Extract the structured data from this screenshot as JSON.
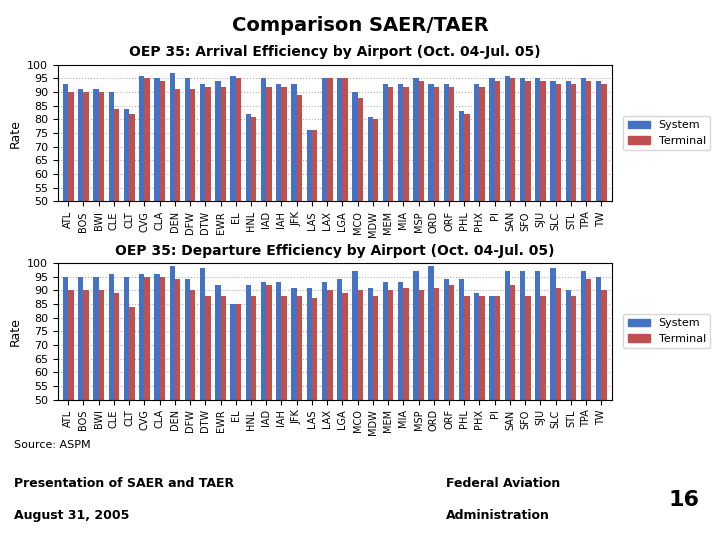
{
  "title": "Comparison SAER/TAER",
  "annotations": [
    "Source: ASPM",
    "Presentation of SAER and TAER",
    "August 31, 2005",
    "Federal Aviation",
    "Administration",
    "16"
  ],
  "chart_data": [
    {
      "type": "bar",
      "title": "OEP 35: Arrival Efficiency by Airport (Oct. 04-Jul. 05)",
      "y_label": "Rate",
      "categories": [
        "ATL",
        "BOS",
        "BWI",
        "CLE",
        "CLT",
        "CVG",
        "CLA",
        "DEN",
        "DFW",
        "DTW",
        "EWR",
        "EL",
        "HNL",
        "IAD",
        "IAH",
        "JFK",
        "LAS",
        "LAX",
        "LGA",
        "MCO",
        "MDW",
        "MEM",
        "MIA",
        "MSP",
        "ORD",
        "ORF",
        "PHL",
        "PHX",
        "PI",
        "SAN",
        "SFO",
        "SJU",
        "SLC",
        "STL",
        "TPA",
        "TW"
      ],
      "series": [
        {
          "name": "System",
          "color": "#4472C4",
          "values": [
            93,
            91,
            91,
            90,
            84,
            96,
            95,
            97,
            95,
            93,
            94,
            96,
            82,
            95,
            93,
            93,
            76,
            95,
            95,
            90,
            81,
            93,
            93,
            95,
            93,
            93,
            83,
            93,
            95,
            96,
            95,
            95,
            94,
            94,
            95,
            94
          ]
        },
        {
          "name": "Terminal",
          "color": "#C0504D",
          "values": [
            90,
            90,
            90,
            84,
            82,
            95,
            94,
            91,
            91,
            92,
            92,
            95,
            81,
            92,
            92,
            89,
            76,
            95,
            95,
            88,
            80,
            92,
            92,
            94,
            92,
            92,
            82,
            92,
            94,
            95,
            94,
            94,
            93,
            93,
            94,
            93
          ]
        }
      ],
      "ylim": [
        50,
        100
      ],
      "yticks": [
        50,
        55,
        60,
        65,
        70,
        75,
        80,
        85,
        90,
        95,
        100
      ],
      "grid": true,
      "legend": "right"
    },
    {
      "type": "bar",
      "title": "OEP 35: Departure Efficiency by Airport (Oct. 04-Jul. 05)",
      "y_label": "Rate",
      "categories": [
        "ATL",
        "BOS",
        "BWI",
        "CLE",
        "CLT",
        "CVG",
        "CLA",
        "DEN",
        "DFW",
        "DTW",
        "EWR",
        "EL",
        "HNL",
        "IAD",
        "IAH",
        "JFK",
        "LAS",
        "LAX",
        "LGA",
        "MCO",
        "MDW",
        "MEM",
        "MIA",
        "MSP",
        "ORD",
        "ORF",
        "PHL",
        "PHX",
        "PI",
        "SAN",
        "SFO",
        "SJU",
        "SLC",
        "STL",
        "TPA",
        "TW"
      ],
      "series": [
        {
          "name": "System",
          "color": "#4472C4",
          "values": [
            95,
            95,
            95,
            96,
            95,
            96,
            96,
            99,
            94,
            98,
            92,
            85,
            92,
            93,
            93,
            91,
            91,
            93,
            94,
            97,
            91,
            93,
            93,
            97,
            99,
            94,
            94,
            89,
            88,
            97,
            97,
            97,
            98,
            90,
            97,
            95
          ]
        },
        {
          "name": "Terminal",
          "color": "#C0504D",
          "values": [
            90,
            90,
            90,
            89,
            84,
            95,
            95,
            94,
            90,
            88,
            88,
            85,
            88,
            92,
            88,
            88,
            87,
            90,
            89,
            90,
            88,
            90,
            91,
            90,
            91,
            92,
            88,
            88,
            88,
            92,
            88,
            88,
            91,
            88,
            94,
            90
          ]
        }
      ],
      "ylim": [
        50,
        100
      ],
      "yticks": [
        50,
        55,
        60,
        65,
        70,
        75,
        80,
        85,
        90,
        95,
        100
      ],
      "grid": true,
      "legend": "right"
    }
  ]
}
